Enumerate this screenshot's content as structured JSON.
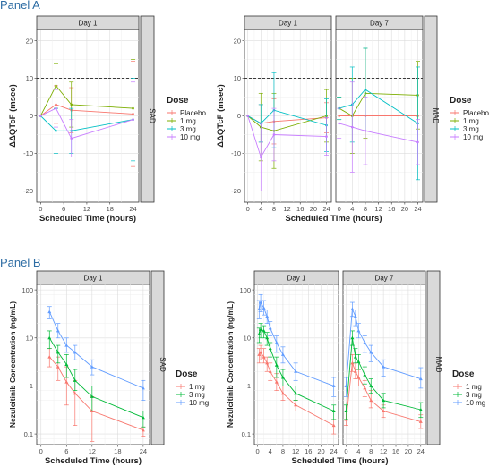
{
  "panel_labels": [
    "Panel A",
    "Panel B"
  ],
  "colors": {
    "placebo": "#F8766D",
    "1 mg": "#7CAE00",
    "3 mg": "#00BFC4",
    "10 mg": "#C77CFF",
    "b_1mg": "#F8766D",
    "b_3mg": "#00BA38",
    "b_10mg": "#619CFF"
  },
  "chart_data": [
    {
      "type": "line",
      "id": "A_SAD",
      "ylabel": "ΔΔQTcF (msec)",
      "xlabel": "Scheduled Time (hours)",
      "facets": [
        "Day 1"
      ],
      "strip": "SAD",
      "xticks": [
        0,
        6,
        12,
        18,
        24
      ],
      "xlim": [
        -1,
        25.5
      ],
      "yticks": [
        -20,
        -10,
        0,
        10,
        20
      ],
      "ylim": [
        -23,
        23
      ],
      "reference_line": 10,
      "grid": true,
      "legend": {
        "title": "Dose",
        "entries": [
          "Placebo",
          "1 mg",
          "3 mg",
          "10 mg"
        ],
        "placement": "right"
      },
      "series": [
        {
          "name": "Placebo",
          "color": "#F8766D",
          "x": [
            0,
            4,
            8,
            24
          ],
          "y": [
            0,
            3,
            1.5,
            0.5
          ],
          "err": [
            0,
            5,
            6,
            14
          ]
        },
        {
          "name": "1 mg",
          "color": "#7CAE00",
          "x": [
            0,
            4,
            8,
            24
          ],
          "y": [
            0,
            8,
            3,
            2
          ],
          "err": [
            0,
            6,
            6,
            13
          ]
        },
        {
          "name": "3 mg",
          "color": "#00BFC4",
          "x": [
            0,
            4,
            8,
            24
          ],
          "y": [
            0,
            -4,
            -4,
            -1
          ],
          "err": [
            0,
            6,
            6,
            11
          ]
        },
        {
          "name": "10 mg",
          "color": "#C77CFF",
          "x": [
            0,
            4,
            8,
            24
          ],
          "y": [
            0,
            2,
            -6,
            -1
          ],
          "err": [
            0,
            5,
            5,
            10
          ]
        }
      ]
    },
    {
      "type": "line",
      "id": "A_MAD",
      "ylabel": "ΔΔQTcF (msec)",
      "xlabel": "Scheduled Time (hours)",
      "facets": [
        "Day 1",
        "Day 7"
      ],
      "strip": "MAD",
      "xticks": [
        0,
        4,
        8,
        12,
        16,
        20,
        24
      ],
      "xlim": [
        -1,
        25.5
      ],
      "yticks": [
        -20,
        -10,
        0,
        10,
        20
      ],
      "ylim": [
        -23,
        23
      ],
      "reference_line": 10,
      "grid": true,
      "legend": {
        "title": "Dose",
        "entries": [
          "Placebo",
          "1 mg",
          "3 mg",
          "10 mg"
        ],
        "placement": "right"
      },
      "panels": [
        {
          "series": [
            {
              "name": "Placebo",
              "color": "#F8766D",
              "x": [
                0,
                4,
                8,
                24
              ],
              "y": [
                0,
                -2,
                -1.5,
                -0.5
              ],
              "err": [
                0,
                5,
                6,
                4
              ]
            },
            {
              "name": "1 mg",
              "color": "#7CAE00",
              "x": [
                0,
                4,
                8,
                24
              ],
              "y": [
                0,
                -3,
                -4,
                0
              ],
              "err": [
                0,
                9,
                10,
                7
              ]
            },
            {
              "name": "3 mg",
              "color": "#00BFC4",
              "x": [
                0,
                4,
                8,
                24
              ],
              "y": [
                0,
                -2,
                1.5,
                -2.5
              ],
              "err": [
                0,
                5,
                10,
                7
              ]
            },
            {
              "name": "10 mg",
              "color": "#C77CFF",
              "x": [
                0,
                4,
                8,
                24
              ],
              "y": [
                0,
                -11,
                -5,
                -5.5
              ],
              "err": [
                0,
                9,
                7,
                5
              ]
            }
          ]
        },
        {
          "series": [
            {
              "name": "Placebo",
              "color": "#F8766D",
              "x": [
                0,
                4,
                8,
                24
              ],
              "y": [
                0,
                0,
                0,
                0
              ],
              "err": [
                0,
                0,
                0,
                0
              ]
            },
            {
              "name": "1 mg",
              "color": "#7CAE00",
              "x": [
                0,
                4,
                8,
                24
              ],
              "y": [
                2,
                0,
                6,
                5.5
              ],
              "err": [
                3,
                10,
                12,
                9
              ]
            },
            {
              "name": "3 mg",
              "color": "#00BFC4",
              "x": [
                0,
                4,
                8,
                24
              ],
              "y": [
                2,
                3,
                7,
                -2
              ],
              "err": [
                3,
                10,
                11,
                15
              ]
            },
            {
              "name": "10 mg",
              "color": "#C77CFF",
              "x": [
                0,
                4,
                8,
                24
              ],
              "y": [
                -2,
                -3,
                -4,
                -7
              ],
              "err": [
                4,
                12,
                9,
                6
              ]
            }
          ]
        }
      ]
    },
    {
      "type": "line",
      "id": "B_SAD",
      "yscale": "log",
      "ylabel": "Nezulcitinib Concentration (ng/mL)",
      "xlabel": "Scheduled Time (hours)",
      "facets": [
        "Day 1"
      ],
      "strip": "SAD",
      "xticks": [
        0,
        6,
        12,
        18,
        24
      ],
      "xlim": [
        -1,
        25.5
      ],
      "yticks": [
        0.1,
        1,
        10,
        100
      ],
      "ytick_labels": [
        "0.1",
        "1",
        "10",
        "100"
      ],
      "ylim": [
        0.06,
        130
      ],
      "grid": true,
      "legend": {
        "title": "Dose",
        "entries": [
          "1 mg",
          "3 mg",
          "10 mg"
        ],
        "placement": "right"
      },
      "series": [
        {
          "name": "1 mg",
          "color": "#F8766D",
          "x": [
            2,
            4,
            6,
            8,
            12,
            24
          ],
          "y": [
            4,
            2.5,
            1.2,
            0.7,
            0.3,
            0.12
          ],
          "lo": [
            2.5,
            1.3,
            0.4,
            0.15,
            0.07,
            0.09
          ],
          "hi": [
            6,
            4,
            2.5,
            1.3,
            0.6,
            0.14
          ]
        },
        {
          "name": "3 mg",
          "color": "#00BA38",
          "x": [
            2,
            4,
            6,
            8,
            12,
            24
          ],
          "y": [
            10,
            5,
            2.8,
            1.3,
            0.6,
            0.22
          ],
          "lo": [
            6,
            3,
            1.5,
            0.8,
            0.3,
            0.14
          ],
          "hi": [
            14,
            7,
            4.5,
            2.2,
            1.0,
            0.3
          ]
        },
        {
          "name": "10 mg",
          "color": "#619CFF",
          "x": [
            2,
            4,
            6,
            8,
            12,
            24
          ],
          "y": [
            35,
            14,
            7,
            5,
            2.5,
            0.9
          ],
          "lo": [
            25,
            10,
            5,
            3.5,
            1.7,
            0.5
          ],
          "hi": [
            45,
            20,
            10,
            7,
            3.5,
            1.3
          ]
        }
      ]
    },
    {
      "type": "line",
      "id": "B_MAD",
      "yscale": "log",
      "ylabel": "Nezulcitinib Concentration (ng/mL)",
      "xlabel": "Scheduled Time (hours)",
      "facets": [
        "Day 1",
        "Day 7"
      ],
      "strip": "MAD",
      "xticks": [
        0,
        4,
        8,
        12,
        16,
        20,
        24
      ],
      "xlim": [
        -1,
        25.5
      ],
      "yticks": [
        0.1,
        1,
        10,
        100
      ],
      "ytick_labels": [
        "0.1",
        "1",
        "10",
        "100"
      ],
      "ylim": [
        0.06,
        130
      ],
      "grid": true,
      "legend": {
        "title": "Dose",
        "entries": [
          "1 mg",
          "3 mg",
          "10 mg"
        ],
        "placement": "right"
      },
      "panels": [
        {
          "series": [
            {
              "name": "1 mg",
              "color": "#F8766D",
              "x": [
                0.5,
                1,
                2,
                3,
                4,
                6,
                8,
                12,
                24
              ],
              "y": [
                4.5,
                5,
                4,
                3,
                2,
                1.2,
                0.7,
                0.4,
                0.15
              ],
              "lo": [
                3,
                3.5,
                3,
                2,
                1.3,
                0.8,
                0.5,
                0.3,
                0.1
              ],
              "hi": [
                6,
                7,
                6,
                4,
                3,
                1.8,
                1.0,
                0.5,
                0.2
              ]
            },
            {
              "name": "3 mg",
              "color": "#00BA38",
              "x": [
                0.5,
                1,
                2,
                3,
                4,
                6,
                8,
                12,
                24
              ],
              "y": [
                12,
                15,
                14,
                10,
                6,
                2.7,
                1.5,
                0.7,
                0.3
              ],
              "lo": [
                8,
                10,
                10,
                7,
                4,
                1.5,
                1.0,
                0.5,
                0.2
              ],
              "hi": [
                16,
                20,
                18,
                13,
                8,
                4,
                2.2,
                1.0,
                0.4
              ]
            },
            {
              "name": "10 mg",
              "color": "#619CFF",
              "x": [
                0.5,
                1,
                2,
                3,
                4,
                6,
                8,
                12,
                24
              ],
              "y": [
                40,
                55,
                42,
                28,
                16,
                8,
                4.5,
                2.0,
                1.0
              ],
              "lo": [
                25,
                35,
                30,
                20,
                11,
                5,
                3,
                1.3,
                0.6
              ],
              "hi": [
                60,
                80,
                60,
                38,
                22,
                11,
                6.5,
                3,
                1.5
              ]
            }
          ]
        },
        {
          "series": [
            {
              "name": "1 mg",
              "color": "#F8766D",
              "x": [
                0,
                2,
                3,
                4,
                6,
                8,
                12,
                24
              ],
              "y": [
                0.2,
                3,
                2,
                1.5,
                0.9,
                0.5,
                0.3,
                0.18
              ],
              "lo": [
                0.15,
                2,
                1.4,
                1.0,
                0.6,
                0.35,
                0.22,
                0.13
              ],
              "hi": [
                0.3,
                4.5,
                3,
                2.2,
                1.3,
                0.8,
                0.4,
                0.25
              ]
            },
            {
              "name": "3 mg",
              "color": "#00BA38",
              "x": [
                0,
                2,
                3,
                4,
                6,
                8,
                12,
                24
              ],
              "y": [
                0.3,
                10,
                4,
                3.2,
                1.7,
                1.0,
                0.5,
                0.32
              ],
              "lo": [
                0.2,
                7,
                3,
                2.2,
                1.1,
                0.7,
                0.35,
                0.22
              ],
              "hi": [
                0.4,
                14,
                6,
                4.5,
                2.5,
                1.4,
                0.7,
                0.45
              ]
            },
            {
              "name": "10 mg",
              "color": "#619CFF",
              "x": [
                0,
                2,
                3,
                4,
                6,
                8,
                12,
                24
              ],
              "y": [
                1.0,
                40,
                28,
                14,
                8,
                5,
                2.5,
                1.4
              ],
              "lo": [
                0.6,
                28,
                18,
                10,
                5,
                3.2,
                1.6,
                0.9
              ],
              "hi": [
                1.5,
                55,
                38,
                20,
                11,
                7,
                3.5,
                2.4
              ]
            }
          ]
        }
      ]
    }
  ]
}
